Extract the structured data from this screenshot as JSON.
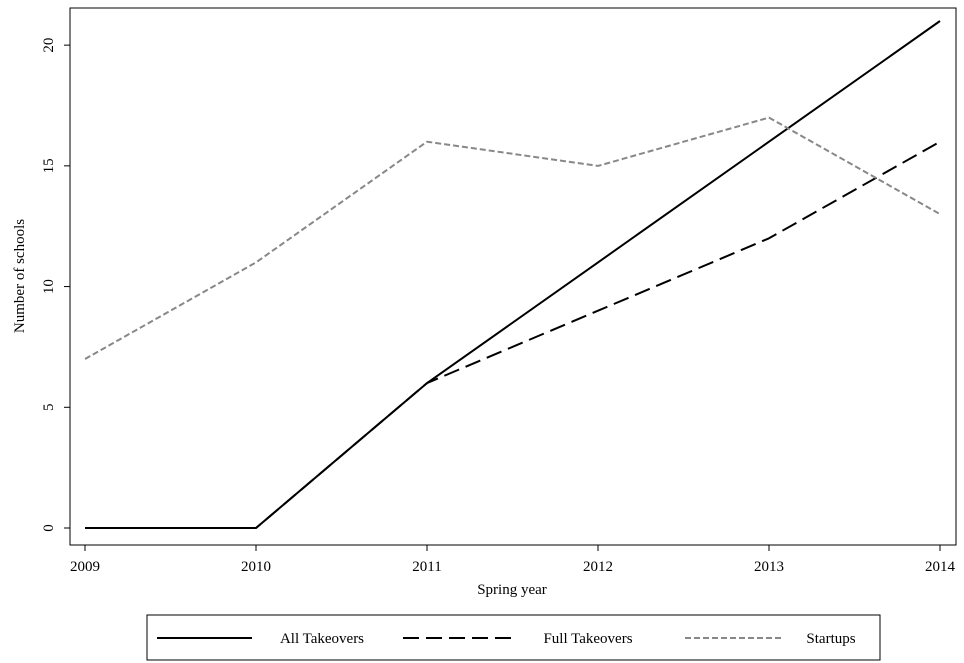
{
  "chart_data": {
    "type": "line",
    "title": "",
    "xlabel": "Spring year",
    "ylabel": "Number of schools",
    "x": [
      2009,
      2010,
      2011,
      2012,
      2013,
      2014
    ],
    "x_ticks": [
      "2009",
      "2010",
      "2011",
      "2012",
      "2013",
      "2014"
    ],
    "y_ticks": [
      "0",
      "5",
      "10",
      "15",
      "20"
    ],
    "xlim": [
      2009,
      2014
    ],
    "ylim": [
      0,
      21
    ],
    "grid": false,
    "legend_position": "bottom",
    "series": [
      {
        "name": "All Takeovers",
        "values": [
          0,
          0,
          6,
          11,
          16,
          21
        ],
        "color": "#000000",
        "line_style": "solid"
      },
      {
        "name": "Full Takeovers",
        "values": [
          0,
          0,
          6,
          9,
          12,
          16
        ],
        "color": "#000000",
        "line_style": "long-dash"
      },
      {
        "name": "Startups",
        "values": [
          7,
          11,
          16,
          15,
          17,
          13
        ],
        "color": "#888888",
        "line_style": "short-dash"
      }
    ]
  }
}
